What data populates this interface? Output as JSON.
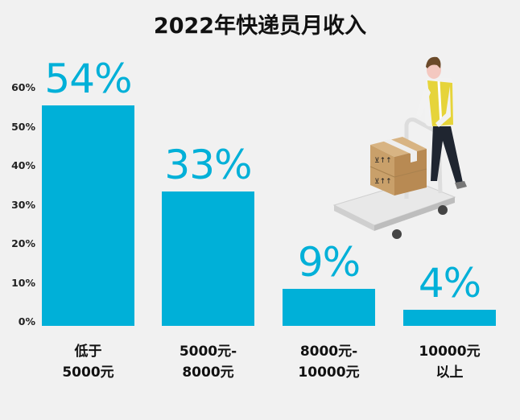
{
  "chart_data": {
    "type": "bar",
    "title": "2022年快递员月收入",
    "categories": [
      [
        "低于",
        "5000元"
      ],
      [
        "5000元-",
        "8000元"
      ],
      [
        "8000元-",
        "10000元"
      ],
      [
        "10000元",
        "以上"
      ]
    ],
    "values": [
      54,
      33,
      9,
      4
    ],
    "value_labels": [
      "54%",
      "33%",
      "9%",
      "4%"
    ],
    "yticks": [
      "0%",
      "10%",
      "20%",
      "30%",
      "40%",
      "50%",
      "60%"
    ],
    "ylim": [
      0,
      60
    ],
    "grid": false,
    "bar_color": "#00b0d8",
    "background": "#f1f1f1"
  },
  "illustration": {
    "icon": "delivery-worker-pushing-cart-with-boxes"
  }
}
